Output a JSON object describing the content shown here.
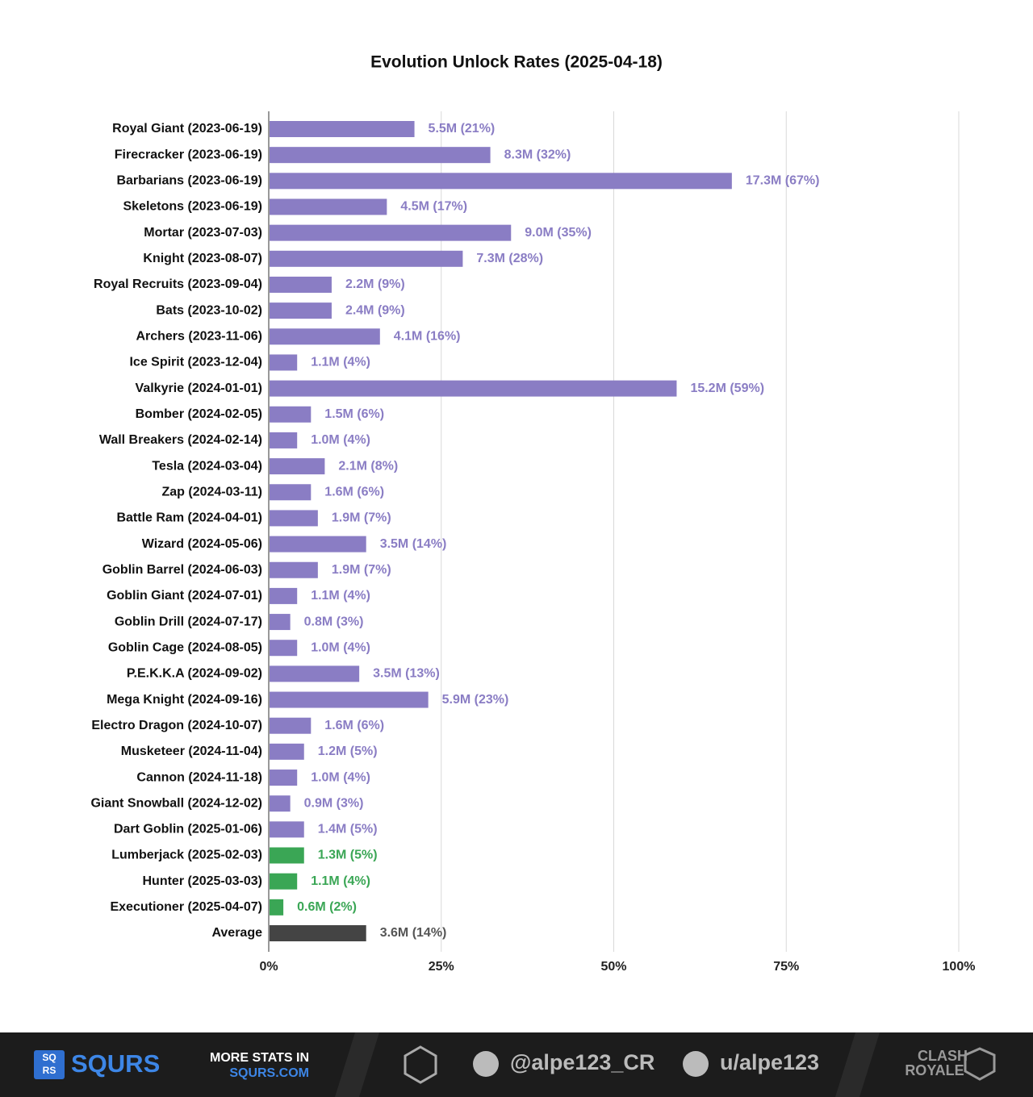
{
  "chart_data": {
    "type": "bar",
    "orientation": "horizontal",
    "title": "Evolution Unlock Rates (2025-04-18)",
    "categories": [
      "Royal Giant (2023-06-19)",
      "Firecracker (2023-06-19)",
      "Barbarians (2023-06-19)",
      "Skeletons (2023-06-19)",
      "Mortar (2023-07-03)",
      "Knight (2023-08-07)",
      "Royal Recruits (2023-09-04)",
      "Bats (2023-10-02)",
      "Archers (2023-11-06)",
      "Ice Spirit (2023-12-04)",
      "Valkyrie (2024-01-01)",
      "Bomber (2024-02-05)",
      "Wall Breakers (2024-02-14)",
      "Tesla (2024-03-04)",
      "Zap (2024-03-11)",
      "Battle Ram (2024-04-01)",
      "Wizard (2024-05-06)",
      "Goblin Barrel (2024-06-03)",
      "Goblin Giant (2024-07-01)",
      "Goblin Drill (2024-07-17)",
      "Goblin Cage (2024-08-05)",
      "P.E.K.K.A (2024-09-02)",
      "Mega Knight (2024-09-16)",
      "Electro Dragon (2024-10-07)",
      "Musketeer (2024-11-04)",
      "Cannon (2024-11-18)",
      "Giant Snowball (2024-12-02)",
      "Dart Goblin (2025-01-06)",
      "Lumberjack (2025-02-03)",
      "Hunter (2025-03-03)",
      "Executioner (2025-04-07)",
      "Average"
    ],
    "values": [
      21,
      32,
      67,
      17,
      35,
      28,
      9,
      9,
      16,
      4,
      59,
      6,
      4,
      8,
      6,
      7,
      14,
      7,
      4,
      3,
      4,
      13,
      23,
      6,
      5,
      4,
      3,
      5,
      5,
      4,
      2,
      14
    ],
    "value_labels": [
      "5.5M (21%)",
      "8.3M (32%)",
      "17.3M (67%)",
      "4.5M (17%)",
      "9.0M (35%)",
      "7.3M (28%)",
      "2.2M (9%)",
      "2.4M (9%)",
      "4.1M (16%)",
      "1.1M (4%)",
      "15.2M (59%)",
      "1.5M (6%)",
      "1.0M (4%)",
      "2.1M (8%)",
      "1.6M (6%)",
      "1.9M (7%)",
      "3.5M (14%)",
      "1.9M (7%)",
      "1.1M (4%)",
      "0.8M (3%)",
      "1.0M (4%)",
      "3.5M (13%)",
      "5.9M (23%)",
      "1.6M (6%)",
      "1.2M (5%)",
      "1.0M (4%)",
      "0.9M (3%)",
      "1.4M (5%)",
      "1.3M (5%)",
      "1.1M (4%)",
      "0.6M (2%)",
      "3.6M (14%)"
    ],
    "colors": [
      "#8a7dc4",
      "#8a7dc4",
      "#8a7dc4",
      "#8a7dc4",
      "#8a7dc4",
      "#8a7dc4",
      "#8a7dc4",
      "#8a7dc4",
      "#8a7dc4",
      "#8a7dc4",
      "#8a7dc4",
      "#8a7dc4",
      "#8a7dc4",
      "#8a7dc4",
      "#8a7dc4",
      "#8a7dc4",
      "#8a7dc4",
      "#8a7dc4",
      "#8a7dc4",
      "#8a7dc4",
      "#8a7dc4",
      "#8a7dc4",
      "#8a7dc4",
      "#8a7dc4",
      "#8a7dc4",
      "#8a7dc4",
      "#8a7dc4",
      "#8a7dc4",
      "#3aa655",
      "#3aa655",
      "#3aa655",
      "#444444"
    ],
    "xlim": [
      0,
      100
    ],
    "xticks": [
      {
        "value": 0,
        "label": "0%"
      },
      {
        "value": 25,
        "label": "25%"
      },
      {
        "value": 50,
        "label": "50%"
      },
      {
        "value": 75,
        "label": "75%"
      },
      {
        "value": 100,
        "label": "100%"
      }
    ],
    "grid": true
  },
  "footer": {
    "logo_icon": [
      "SQ",
      "RS"
    ],
    "brand": "SQURS",
    "promo": "MORE STATS IN",
    "site": "SQURS.COM",
    "twitter": "@alpe123_CR",
    "reddit": "u/alpe123",
    "game_logo": [
      "CLASH",
      "ROYALE"
    ]
  }
}
